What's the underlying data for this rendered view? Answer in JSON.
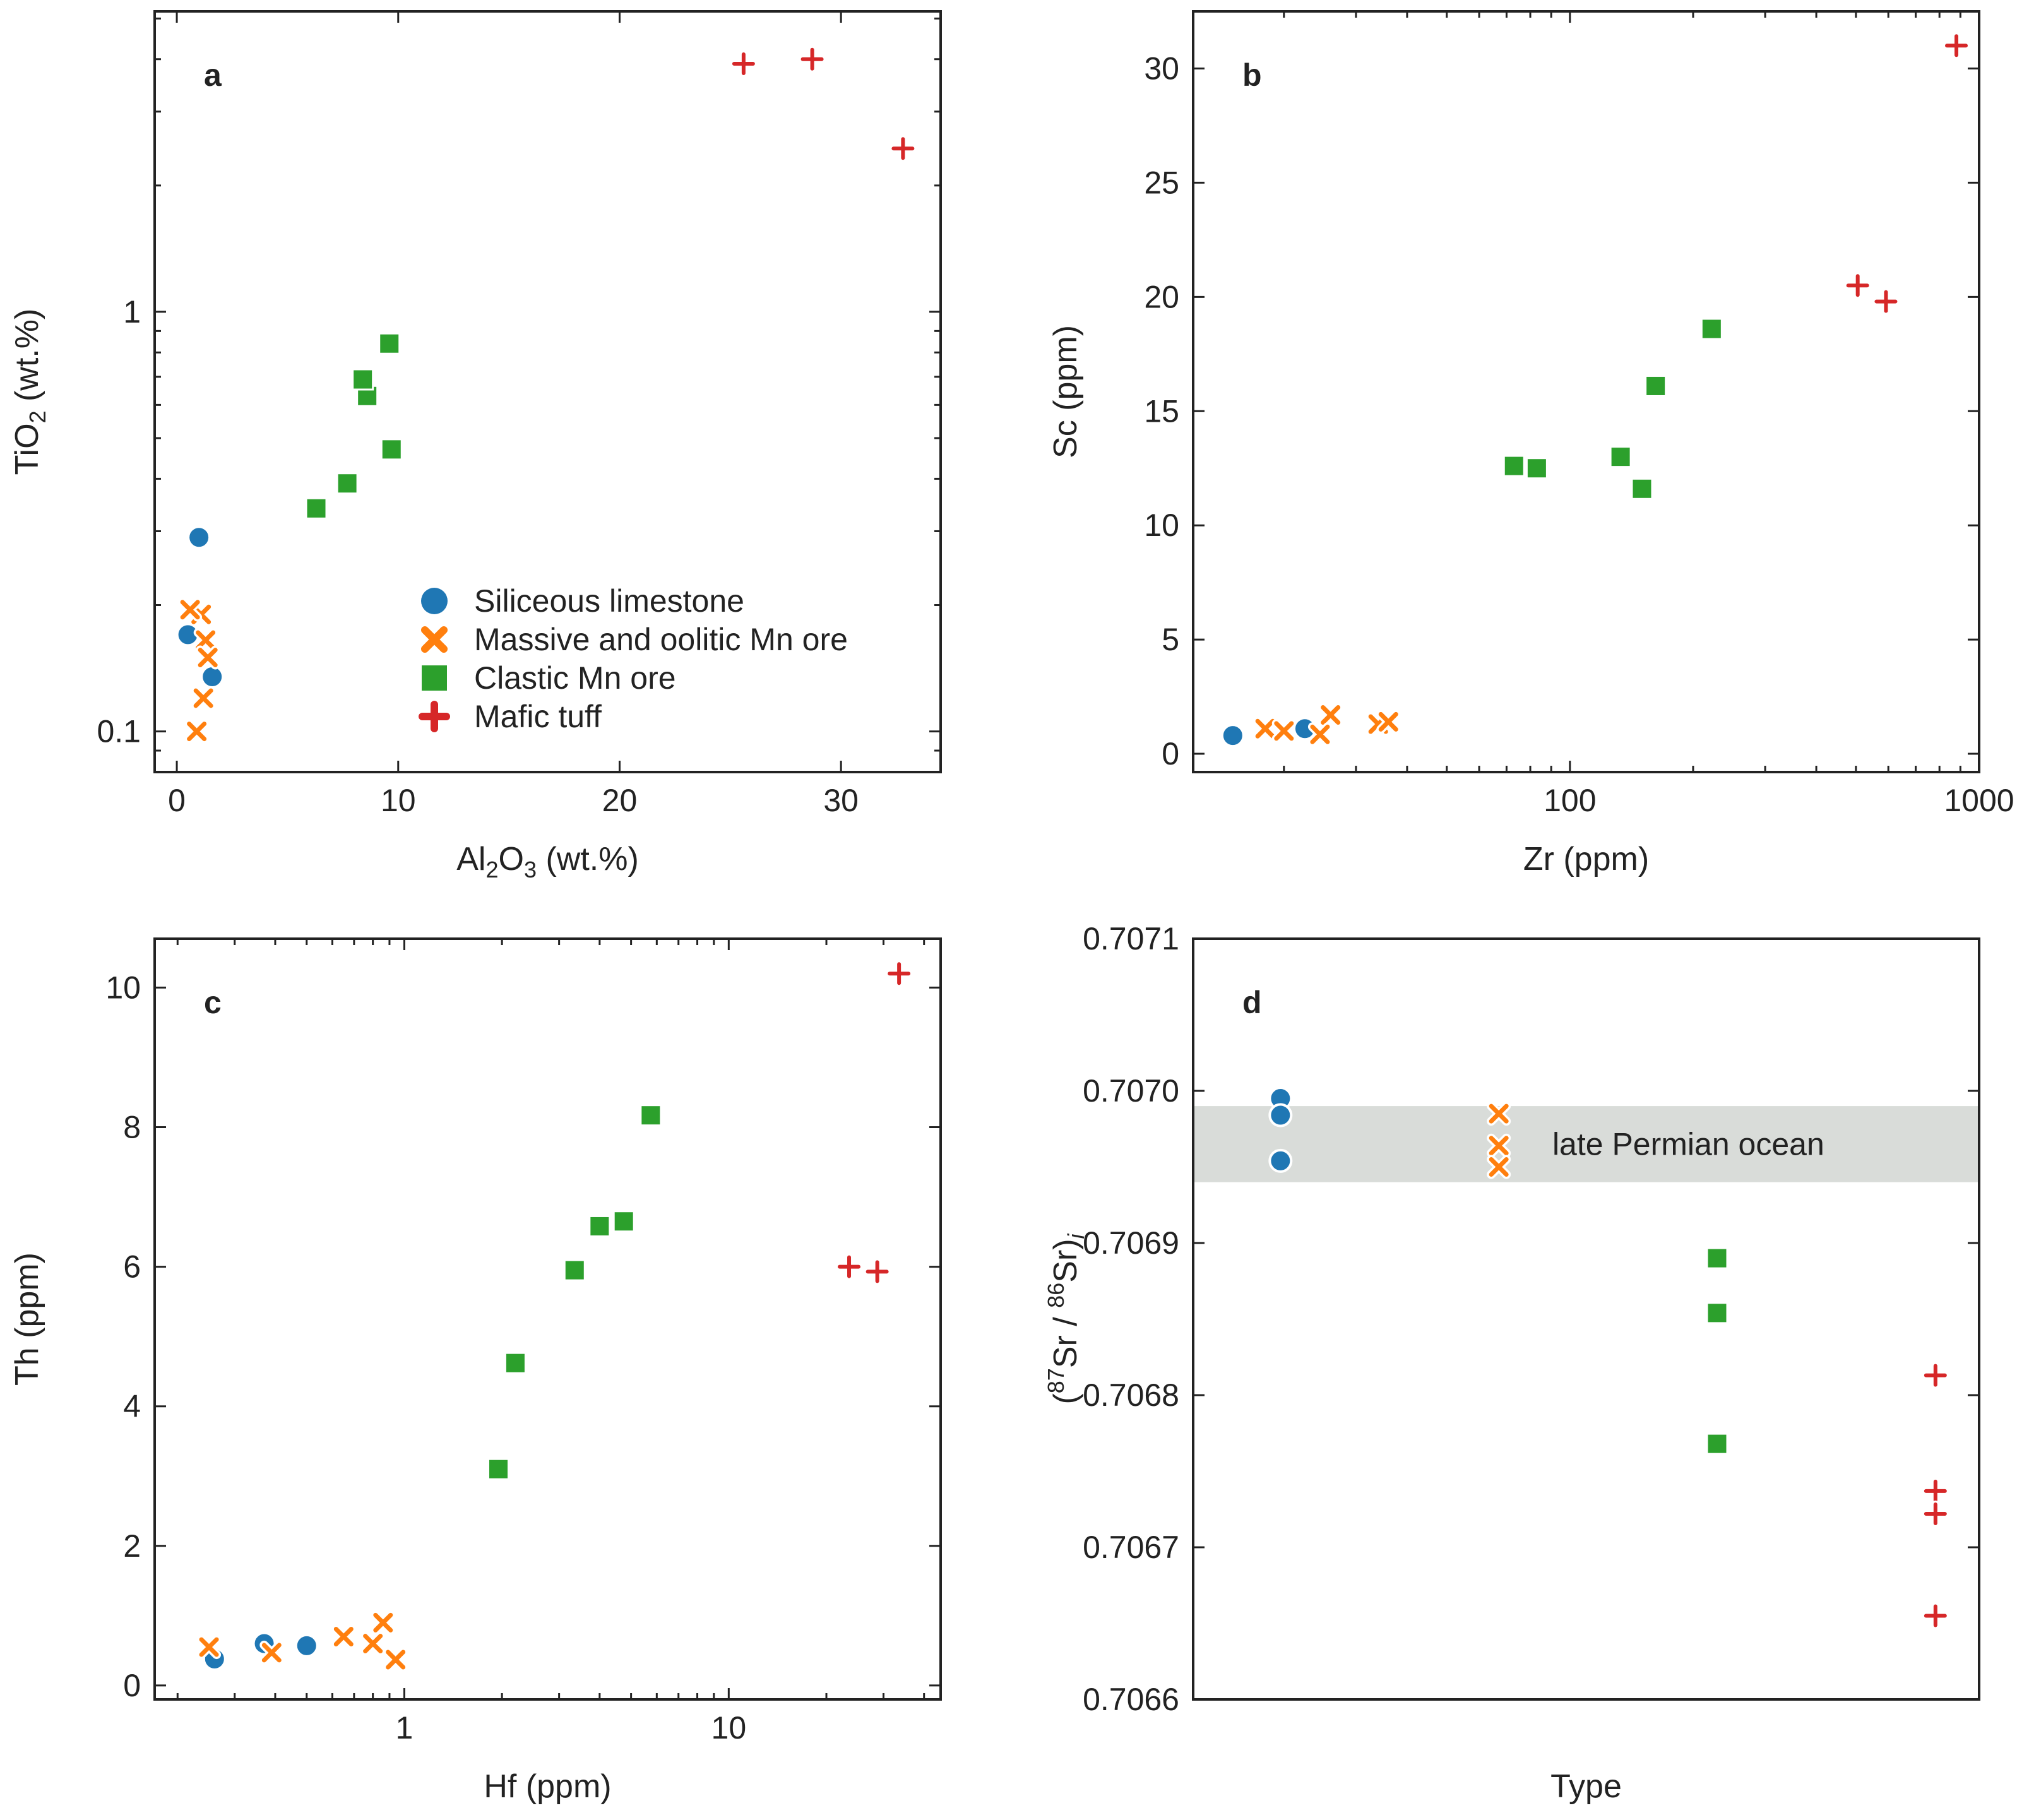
{
  "colors": {
    "siliceous": "#1f77b4",
    "massive": "#ff7f0e",
    "clastic": "#2ca02c",
    "mafic": "#d62728",
    "band": "#d9dcd9"
  },
  "legend": [
    {
      "key": "siliceous",
      "label": "Siliceous limestone",
      "marker": "circle"
    },
    {
      "key": "massive",
      "label": "Massive and oolitic Mn ore",
      "marker": "x"
    },
    {
      "key": "clastic",
      "label": "Clastic Mn ore",
      "marker": "square"
    },
    {
      "key": "mafic",
      "label": "Mafic tuff",
      "marker": "plus"
    }
  ],
  "chart_data": [
    {
      "panel": "a",
      "type": "scatter",
      "xlabel": "Al2O3 (wt.%)",
      "ylabel": "TiO2 (wt.%)",
      "xscale": "linear",
      "yscale": "log",
      "xlim": [
        -1,
        34.5
      ],
      "ylim": [
        0.08,
        5.2
      ],
      "xticks": [
        0,
        10,
        20,
        30
      ],
      "xtick_labels": [
        "0",
        "10",
        "20",
        "30"
      ],
      "yticks": [
        0.1,
        1
      ],
      "ytick_labels": [
        "0.1",
        "1"
      ],
      "legend_position": "lower-right",
      "series": [
        {
          "key": "siliceous",
          "x": [
            1.0,
            0.5,
            1.6
          ],
          "y": [
            0.29,
            0.17,
            0.135
          ]
        },
        {
          "key": "massive",
          "x": [
            1.1,
            1.3,
            1.4,
            1.2,
            0.9,
            0.6
          ],
          "y": [
            0.19,
            0.165,
            0.15,
            0.12,
            0.1,
            0.195
          ]
        },
        {
          "key": "clastic",
          "x": [
            6.3,
            7.7,
            8.6,
            8.4,
            9.7,
            9.6
          ],
          "y": [
            0.34,
            0.39,
            0.63,
            0.69,
            0.47,
            0.84
          ]
        },
        {
          "key": "mafic",
          "x": [
            25.6,
            28.7,
            32.8
          ],
          "y": [
            3.9,
            4.0,
            2.45
          ]
        }
      ]
    },
    {
      "panel": "b",
      "type": "scatter",
      "xlabel": "Zr (ppm)",
      "ylabel": "Sc (ppm)",
      "xscale": "log",
      "yscale": "linear",
      "xlim": [
        12,
        1000
      ],
      "ylim": [
        -0.8,
        32.5
      ],
      "xticks": [
        100,
        1000
      ],
      "xtick_labels": [
        "100",
        "1000"
      ],
      "yticks": [
        0,
        5,
        10,
        15,
        20,
        25,
        30
      ],
      "ytick_labels": [
        "0",
        "5",
        "10",
        "15",
        "20",
        "25",
        "30"
      ],
      "series": [
        {
          "key": "siliceous",
          "x": [
            15,
            22.5
          ],
          "y": [
            0.8,
            1.1
          ]
        },
        {
          "key": "massive",
          "x": [
            18,
            20,
            26,
            24.5,
            34,
            36
          ],
          "y": [
            1.1,
            1.0,
            1.7,
            0.85,
            1.3,
            1.4
          ]
        },
        {
          "key": "clastic",
          "x": [
            73,
            83,
            133,
            150,
            162,
            222
          ],
          "y": [
            12.6,
            12.5,
            13.0,
            11.6,
            16.1,
            18.6
          ]
        },
        {
          "key": "mafic",
          "x": [
            505,
            592,
            880
          ],
          "y": [
            20.5,
            19.8,
            31.0
          ]
        }
      ]
    },
    {
      "panel": "c",
      "type": "scatter",
      "xlabel": "Hf (ppm)",
      "ylabel": "Th (ppm)",
      "xscale": "log",
      "yscale": "linear",
      "xlim": [
        0.17,
        45
      ],
      "ylim": [
        -0.2,
        10.7
      ],
      "xticks": [
        1,
        10
      ],
      "xtick_labels": [
        "1",
        "10"
      ],
      "yticks": [
        0,
        2,
        4,
        6,
        8,
        10
      ],
      "ytick_labels": [
        "0",
        "2",
        "4",
        "6",
        "8",
        "10"
      ],
      "series": [
        {
          "key": "siliceous",
          "x": [
            0.26,
            0.37,
            0.5
          ],
          "y": [
            0.38,
            0.6,
            0.57
          ]
        },
        {
          "key": "massive",
          "x": [
            0.25,
            0.39,
            0.65,
            0.8,
            0.86,
            0.94
          ],
          "y": [
            0.55,
            0.47,
            0.7,
            0.6,
            0.9,
            0.37
          ]
        },
        {
          "key": "clastic",
          "x": [
            1.95,
            2.2,
            3.35,
            4.0,
            4.75,
            5.75
          ],
          "y": [
            3.1,
            4.62,
            5.95,
            6.58,
            6.65,
            8.17
          ]
        },
        {
          "key": "mafic",
          "x": [
            23.5,
            28.7,
            33.5
          ],
          "y": [
            6.0,
            5.93,
            10.2
          ]
        }
      ]
    },
    {
      "panel": "d",
      "type": "scatter",
      "xlabel": "Type",
      "ylabel": "(87Sr / 86Sr)i",
      "xscale": "category",
      "yscale": "linear",
      "xlim": [
        -0.4,
        3.2
      ],
      "ylim": [
        0.7066,
        0.7071
      ],
      "yticks": [
        0.7066,
        0.7067,
        0.7068,
        0.7069,
        0.707,
        0.7071
      ],
      "ytick_labels": [
        "0.7066",
        "0.7067",
        "0.7068",
        "0.7069",
        "0.7070",
        "0.7071"
      ],
      "band": {
        "y0": 0.70694,
        "y1": 0.70699,
        "label": "late Permian ocean"
      },
      "series": [
        {
          "key": "siliceous",
          "x": [
            0,
            0,
            0
          ],
          "y": [
            0.706995,
            0.706984,
            0.706954
          ]
        },
        {
          "key": "massive",
          "x": [
            1,
            1,
            1
          ],
          "y": [
            0.706985,
            0.706964,
            0.70695
          ]
        },
        {
          "key": "clastic",
          "x": [
            2,
            2,
            2
          ],
          "y": [
            0.70689,
            0.706854,
            0.706768
          ]
        },
        {
          "key": "mafic",
          "x": [
            3,
            3,
            3,
            3
          ],
          "y": [
            0.706813,
            0.706737,
            0.706722,
            0.706655
          ]
        }
      ]
    }
  ]
}
